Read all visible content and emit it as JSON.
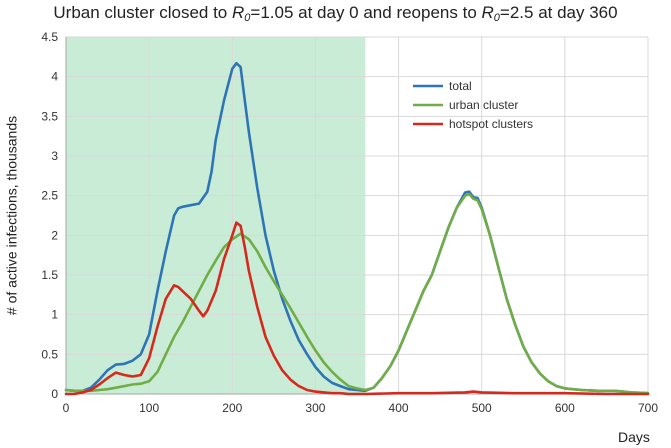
{
  "title": {
    "prefix": "Urban cluster closed to ",
    "r_symbol": "R",
    "r_sub": "0",
    "middle": "=1.05 at day 0 and reopens to ",
    "suffix1": "=1.05",
    "suffix2": "=2.5 at day 360"
  },
  "chart_data": {
    "type": "line",
    "title": "Urban cluster closed to R0=1.05 at day 0 and reopens to R0=2.5 at day 360",
    "xlabel": "Days",
    "ylabel": "# of active infections, thousands",
    "xlim": [
      0,
      700
    ],
    "ylim": [
      0,
      4.5
    ],
    "x_ticks": [
      "0",
      "100",
      "200",
      "300",
      "400",
      "500",
      "600",
      "700"
    ],
    "y_ticks": [
      "0",
      "0.5",
      "1",
      "1.5",
      "2",
      "2.5",
      "3",
      "3.5",
      "4",
      "4.5"
    ],
    "grid": true,
    "legend_position": "upper-right inside",
    "shaded_region": {
      "x_start": 0,
      "x_end": 360,
      "color": "#c9ecd6"
    },
    "series": [
      {
        "name": "total",
        "color": "#2e75b6",
        "x": [
          0,
          10,
          20,
          30,
          40,
          50,
          60,
          70,
          80,
          90,
          100,
          110,
          120,
          130,
          135,
          140,
          150,
          160,
          170,
          175,
          180,
          190,
          200,
          205,
          210,
          215,
          220,
          230,
          240,
          250,
          260,
          270,
          280,
          290,
          300,
          310,
          320,
          330,
          340,
          350,
          360,
          370,
          380,
          390,
          400,
          410,
          420,
          430,
          440,
          450,
          460,
          470,
          480,
          485,
          490,
          495,
          500,
          510,
          520,
          530,
          540,
          550,
          560,
          570,
          580,
          590,
          600,
          620,
          640,
          660,
          680,
          700
        ],
        "y": [
          0.05,
          0.04,
          0.04,
          0.08,
          0.18,
          0.3,
          0.37,
          0.38,
          0.42,
          0.5,
          0.75,
          1.3,
          1.8,
          2.25,
          2.34,
          2.36,
          2.38,
          2.4,
          2.55,
          2.8,
          3.2,
          3.7,
          4.1,
          4.17,
          4.12,
          3.7,
          3.3,
          2.6,
          2.0,
          1.55,
          1.2,
          0.92,
          0.68,
          0.5,
          0.34,
          0.22,
          0.14,
          0.1,
          0.06,
          0.05,
          0.04,
          0.08,
          0.2,
          0.35,
          0.55,
          0.8,
          1.05,
          1.3,
          1.5,
          1.8,
          2.1,
          2.35,
          2.54,
          2.55,
          2.48,
          2.47,
          2.35,
          2.0,
          1.6,
          1.2,
          0.88,
          0.6,
          0.4,
          0.26,
          0.16,
          0.1,
          0.07,
          0.05,
          0.04,
          0.04,
          0.02,
          0.01
        ]
      },
      {
        "name": "urban cluster",
        "color": "#70ad47",
        "x": [
          0,
          10,
          20,
          30,
          40,
          50,
          60,
          70,
          80,
          90,
          100,
          110,
          120,
          130,
          140,
          150,
          160,
          170,
          180,
          190,
          200,
          210,
          220,
          230,
          240,
          250,
          260,
          270,
          280,
          290,
          300,
          310,
          320,
          330,
          340,
          350,
          360,
          370,
          380,
          390,
          400,
          410,
          420,
          430,
          440,
          450,
          460,
          470,
          480,
          485,
          490,
          495,
          500,
          510,
          520,
          530,
          540,
          550,
          560,
          570,
          580,
          590,
          600,
          620,
          640,
          660,
          680,
          700
        ],
        "y": [
          0.05,
          0.04,
          0.04,
          0.04,
          0.05,
          0.06,
          0.08,
          0.1,
          0.12,
          0.13,
          0.16,
          0.28,
          0.5,
          0.72,
          0.9,
          1.1,
          1.3,
          1.5,
          1.68,
          1.85,
          1.95,
          2.02,
          1.95,
          1.8,
          1.6,
          1.42,
          1.25,
          1.08,
          0.9,
          0.72,
          0.55,
          0.4,
          0.28,
          0.18,
          0.1,
          0.07,
          0.05,
          0.08,
          0.2,
          0.35,
          0.55,
          0.8,
          1.05,
          1.3,
          1.5,
          1.8,
          2.1,
          2.35,
          2.5,
          2.52,
          2.46,
          2.44,
          2.33,
          2.0,
          1.6,
          1.2,
          0.88,
          0.6,
          0.4,
          0.26,
          0.16,
          0.1,
          0.07,
          0.05,
          0.04,
          0.04,
          0.02,
          0.01
        ]
      },
      {
        "name": "hotspot clusters",
        "color": "#d42a1e",
        "x": [
          0,
          10,
          20,
          30,
          40,
          50,
          60,
          70,
          80,
          90,
          100,
          110,
          120,
          130,
          135,
          140,
          150,
          160,
          165,
          170,
          180,
          190,
          200,
          205,
          210,
          215,
          220,
          230,
          240,
          250,
          260,
          270,
          280,
          290,
          300,
          310,
          320,
          330,
          340,
          360,
          400,
          440,
          480,
          490,
          500,
          540,
          600,
          650,
          700
        ],
        "y": [
          0.0,
          0.0,
          0.02,
          0.05,
          0.12,
          0.2,
          0.27,
          0.24,
          0.22,
          0.24,
          0.45,
          0.85,
          1.2,
          1.37,
          1.35,
          1.3,
          1.2,
          1.05,
          0.98,
          1.05,
          1.3,
          1.7,
          2.0,
          2.16,
          2.12,
          1.85,
          1.55,
          1.1,
          0.72,
          0.48,
          0.3,
          0.18,
          0.1,
          0.05,
          0.03,
          0.02,
          0.01,
          0.01,
          0.0,
          0.0,
          0.01,
          0.01,
          0.02,
          0.03,
          0.02,
          0.01,
          0.01,
          0.0,
          0.0
        ]
      }
    ]
  }
}
